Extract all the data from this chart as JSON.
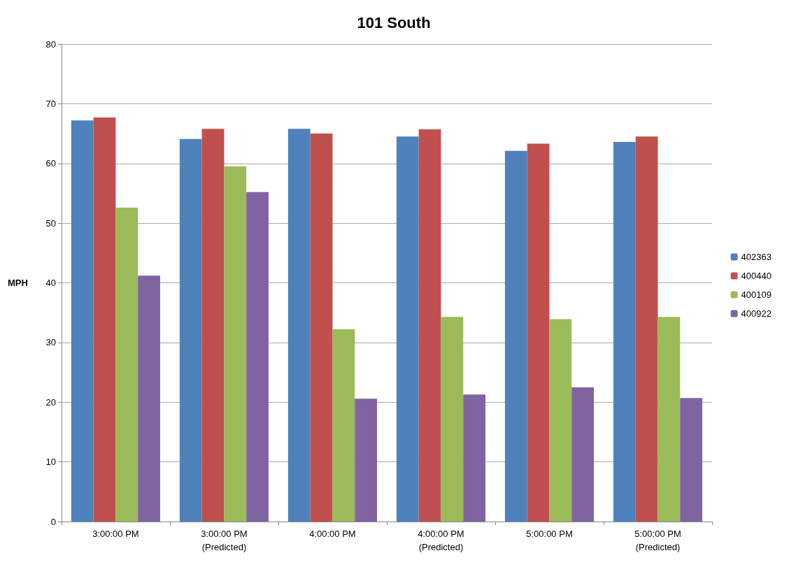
{
  "chart_data": {
    "type": "bar",
    "title": "101 South",
    "ylabel": "MPH",
    "categories": [
      "3:00:00 PM",
      "3:00:00 PM\n(Predicted)",
      "4:00:00 PM",
      "4:00:00 PM\n(Predicted)",
      "5:00:00 PM",
      "5:00:00 PM\n(Predicted)"
    ],
    "series": [
      {
        "name": "402363",
        "color": "#4f81bd",
        "values": [
          67.2,
          64.1,
          65.8,
          64.5,
          62.1,
          63.6
        ]
      },
      {
        "name": "400440",
        "color": "#c0504d",
        "values": [
          67.7,
          65.8,
          65.0,
          65.7,
          63.3,
          64.5
        ]
      },
      {
        "name": "400109",
        "color": "#9bbb59",
        "values": [
          52.6,
          59.5,
          32.2,
          34.3,
          33.9,
          34.3
        ]
      },
      {
        "name": "400922",
        "color": "#8064a2",
        "values": [
          41.2,
          55.2,
          20.6,
          21.3,
          22.5,
          20.7
        ]
      }
    ],
    "ylim": [
      0,
      80
    ],
    "yticks": [
      0,
      10,
      20,
      30,
      40,
      50,
      60,
      70,
      80
    ],
    "grid": "y",
    "legend": "right"
  }
}
